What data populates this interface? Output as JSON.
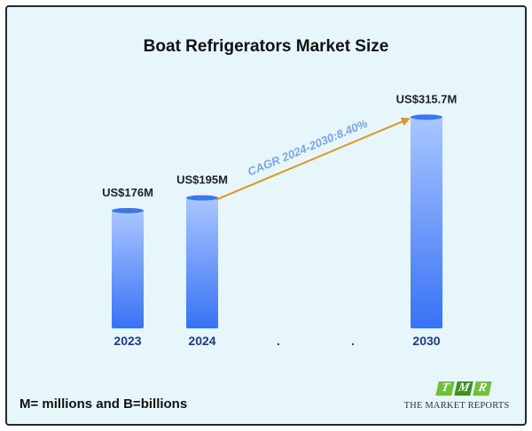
{
  "footnote": "M= millions and B=billions",
  "logo": {
    "letters": [
      "T",
      "M",
      "R"
    ],
    "text": "THE MARKET REPORTS"
  },
  "chart_data": {
    "type": "bar",
    "title": "Boat Refrigerators Market Size",
    "categories": [
      "2023",
      "2024",
      "2030"
    ],
    "values": [
      176,
      195,
      315.7
    ],
    "value_labels": [
      "US$176M",
      "US$195M",
      "US$315.7M"
    ],
    "unit": "US$ million",
    "gap_markers": [
      ".",
      "."
    ],
    "annotation": {
      "text": "CAGR 2024-2030:8.40%",
      "from": "2024",
      "to": "2030"
    },
    "colors": {
      "bar_top": "#a9c6ff",
      "bar_bottom": "#3872f5",
      "bar_cap": "#3a78f2",
      "category_label": "#1e3c8c",
      "arrow": "#e0961f",
      "annotation_text": "#7aa6e6"
    },
    "grid": false,
    "legend": "none"
  }
}
